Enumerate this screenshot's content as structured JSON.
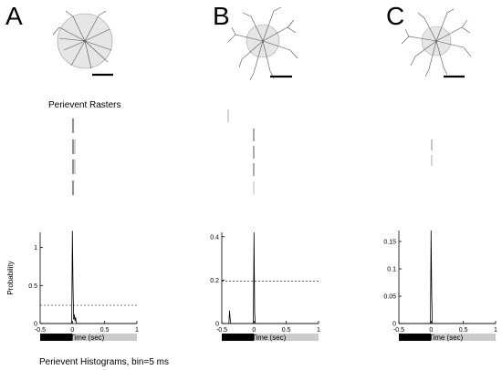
{
  "panels": [
    {
      "letter": "A"
    },
    {
      "letter": "B"
    },
    {
      "letter": "C"
    }
  ],
  "raster_title": "Perievent Rasters",
  "histogram_caption": "Perievent Histograms, bin=5 ms",
  "chart_data": [
    {
      "type": "line",
      "panel": "A",
      "title": "",
      "xlabel": "Time (sec)",
      "ylabel": "Probability",
      "xlim": [
        -0.5,
        1
      ],
      "ylim": [
        0,
        1.2
      ],
      "xticks": [
        "-0.5",
        "0",
        "0.5",
        "1"
      ],
      "yticks": [
        "0",
        "0.5",
        "1"
      ],
      "threshold": 0.24,
      "series": [
        {
          "x": [
            -0.5,
            -0.01,
            0.0,
            0.01,
            0.02,
            0.03,
            0.04,
            0.05,
            0.06,
            1.0
          ],
          "y": [
            0,
            0,
            1.22,
            0.5,
            0.05,
            0.12,
            0.03,
            0.08,
            0,
            0
          ]
        }
      ],
      "stim_bar": {
        "off": [
          -0.5,
          0
        ],
        "on": [
          0,
          1
        ],
        "off_color": "#000000",
        "on_color": "#cccccc"
      }
    },
    {
      "type": "line",
      "panel": "B",
      "title": "",
      "xlabel": "Time (sec)",
      "ylabel": "",
      "xlim": [
        -0.5,
        1
      ],
      "ylim": [
        0,
        0.42
      ],
      "xticks": [
        "-0.5",
        "0",
        "0.5",
        "1"
      ],
      "yticks": [
        "0",
        "0.2",
        "0.4"
      ],
      "threshold": 0.196,
      "series": [
        {
          "x": [
            -0.5,
            -0.39,
            -0.38,
            -0.37,
            -0.36,
            -0.01,
            0.0,
            0.01,
            0.02,
            1.0
          ],
          "y": [
            0,
            0,
            0.06,
            0.02,
            0,
            0,
            0.42,
            0.05,
            0,
            0
          ]
        }
      ],
      "stim_bar": {
        "off": [
          -0.5,
          0
        ],
        "on": [
          0,
          1
        ],
        "off_color": "#000000",
        "on_color": "#cccccc"
      }
    },
    {
      "type": "line",
      "panel": "C",
      "title": "",
      "xlabel": "Time (sec)",
      "ylabel": "",
      "xlim": [
        -0.5,
        1
      ],
      "ylim": [
        0,
        0.17
      ],
      "xticks": [
        "-0.5",
        "0",
        "0.5",
        "1"
      ],
      "yticks": [
        "0",
        "0.05",
        "0.1",
        "0.15"
      ],
      "series": [
        {
          "x": [
            -0.5,
            -0.01,
            0.0,
            0.01,
            0.02,
            1.0
          ],
          "y": [
            0,
            0,
            0.17,
            0.05,
            0,
            0
          ]
        }
      ],
      "stim_bar": {
        "off": [
          -0.5,
          0
        ],
        "on": [
          0,
          1
        ],
        "off_color": "#000000",
        "on_color": "#cccccc"
      }
    }
  ]
}
